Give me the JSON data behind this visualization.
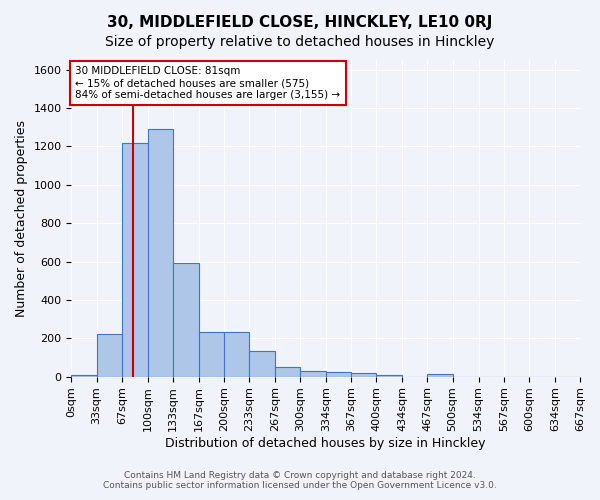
{
  "title": "30, MIDDLEFIELD CLOSE, HINCKLEY, LE10 0RJ",
  "subtitle": "Size of property relative to detached houses in Hinckley",
  "xlabel": "Distribution of detached houses by size in Hinckley",
  "ylabel": "Number of detached properties",
  "footer_line1": "Contains HM Land Registry data © Crown copyright and database right 2024.",
  "footer_line2": "Contains public sector information licensed under the Open Government Licence v3.0.",
  "bin_labels": [
    "0sqm",
    "33sqm",
    "67sqm",
    "100sqm",
    "133sqm",
    "167sqm",
    "200sqm",
    "233sqm",
    "267sqm",
    "300sqm",
    "334sqm",
    "367sqm",
    "400sqm",
    "434sqm",
    "467sqm",
    "500sqm",
    "534sqm",
    "567sqm",
    "600sqm",
    "634sqm",
    "667sqm"
  ],
  "bin_edges": [
    0,
    33,
    67,
    100,
    133,
    167,
    200,
    233,
    267,
    300,
    334,
    367,
    400,
    434,
    467,
    500,
    534,
    567,
    600,
    634,
    667
  ],
  "bar_heights": [
    10,
    222,
    1220,
    1290,
    594,
    232,
    232,
    135,
    50,
    30,
    25,
    20,
    10,
    0,
    12,
    0,
    0,
    0,
    0,
    0
  ],
  "bar_color": "#aec6e8",
  "bar_edge_color": "#4472c4",
  "ylim": [
    0,
    1650
  ],
  "yticks": [
    0,
    200,
    400,
    600,
    800,
    1000,
    1200,
    1400,
    1600
  ],
  "property_line_x": 81,
  "annotation_title": "30 MIDDLEFIELD CLOSE: 81sqm",
  "annotation_line1": "← 15% of detached houses are smaller (575)",
  "annotation_line2": "84% of semi-detached houses are larger (3,155) →",
  "annotation_box_color": "#ffffff",
  "annotation_border_color": "#cc0000",
  "property_line_color": "#cc0000",
  "bg_color": "#f0f4fa",
  "grid_color": "#ffffff",
  "title_fontsize": 11,
  "subtitle_fontsize": 10,
  "axis_label_fontsize": 9,
  "tick_fontsize": 8
}
